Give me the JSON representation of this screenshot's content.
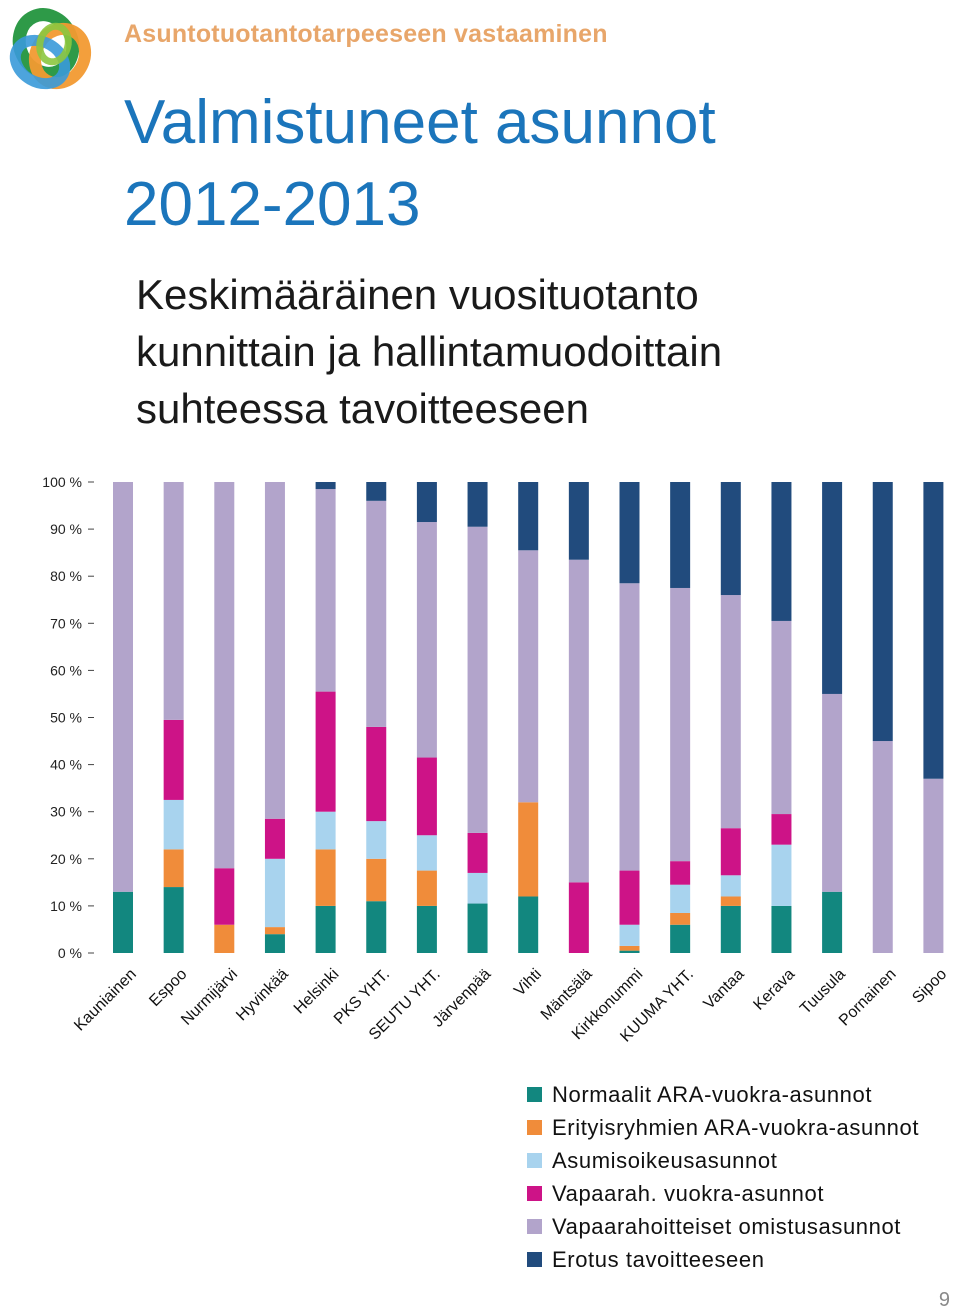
{
  "header": {
    "top_title": "Asuntotuotantotarpeeseen vastaaminen",
    "title_line1": "Valmistuneet asunnot",
    "title_line2": "2012-2013",
    "subtitle_line1": "Keskimääräinen vuosituotanto",
    "subtitle_line2": "kunnittain ja hallintamuodoittain",
    "subtitle_line3": "suhteessa tavoitteeseen"
  },
  "logo": {
    "icon": "logo-icon"
  },
  "page_number": "9",
  "chart_data": {
    "type": "bar",
    "stacked": true,
    "ylim": [
      0,
      100
    ],
    "yticks": [
      "0 %",
      "10 %",
      "20 %",
      "30 %",
      "40 %",
      "50 %",
      "60 %",
      "70 %",
      "80 %",
      "90 %",
      "100 %"
    ],
    "grid": false,
    "legend_position": "bottom-right",
    "categories": [
      "Kauniainen",
      "Espoo",
      "Nurmijärvi",
      "Hyvinkää",
      "Helsinki",
      "PKS YHT.",
      "SEUTU YHT.",
      "Järvenpää",
      "Vihti",
      "Mäntsälä",
      "Kirkkonummi",
      "KUUMA YHT.",
      "Vantaa",
      "Kerava",
      "Tuusula",
      "Pornainen",
      "Sipoo"
    ],
    "series": [
      {
        "name": "Normaalit ARA-vuokra-asunnot",
        "color": "#12877f",
        "values": [
          13,
          14,
          0,
          4,
          10,
          11,
          10,
          10.5,
          12,
          0,
          0.5,
          6,
          10,
          10,
          13,
          0,
          0
        ]
      },
      {
        "name": "Erityisryhmien ARA-vuokra-asunnot",
        "color": "#f08c3a",
        "values": [
          0,
          8,
          6,
          1.5,
          12,
          9,
          7.5,
          0,
          20,
          0,
          1,
          2.5,
          2,
          0,
          0,
          0,
          0
        ]
      },
      {
        "name": "Asumisoikeusasunnot",
        "color": "#a8d3ee",
        "values": [
          0,
          10.5,
          0,
          14.5,
          8,
          8,
          7.5,
          6.5,
          0,
          0,
          4.5,
          6,
          4.5,
          13,
          0,
          0,
          0
        ]
      },
      {
        "name": "Vapaarah. vuokra-asunnot",
        "color": "#cd1387",
        "values": [
          0,
          17,
          12,
          8.5,
          25.5,
          20,
          16.5,
          8.5,
          0,
          15,
          11.5,
          5,
          10,
          6.5,
          0,
          0,
          0
        ]
      },
      {
        "name": "Vapaarahoitteiset omistusasunnot",
        "color": "#b2a4cb",
        "values": [
          87,
          50.5,
          82,
          71.5,
          43,
          48,
          50,
          65,
          53.5,
          68.5,
          61,
          58,
          49.5,
          41,
          42,
          45,
          37
        ]
      },
      {
        "name": "Erotus tavoitteeseen",
        "color": "#214b7d",
        "values": [
          0,
          0,
          0,
          0,
          1.5,
          4,
          8.5,
          9.5,
          14.5,
          16.5,
          21.5,
          22.5,
          24,
          29.5,
          45,
          55,
          63
        ]
      }
    ]
  }
}
